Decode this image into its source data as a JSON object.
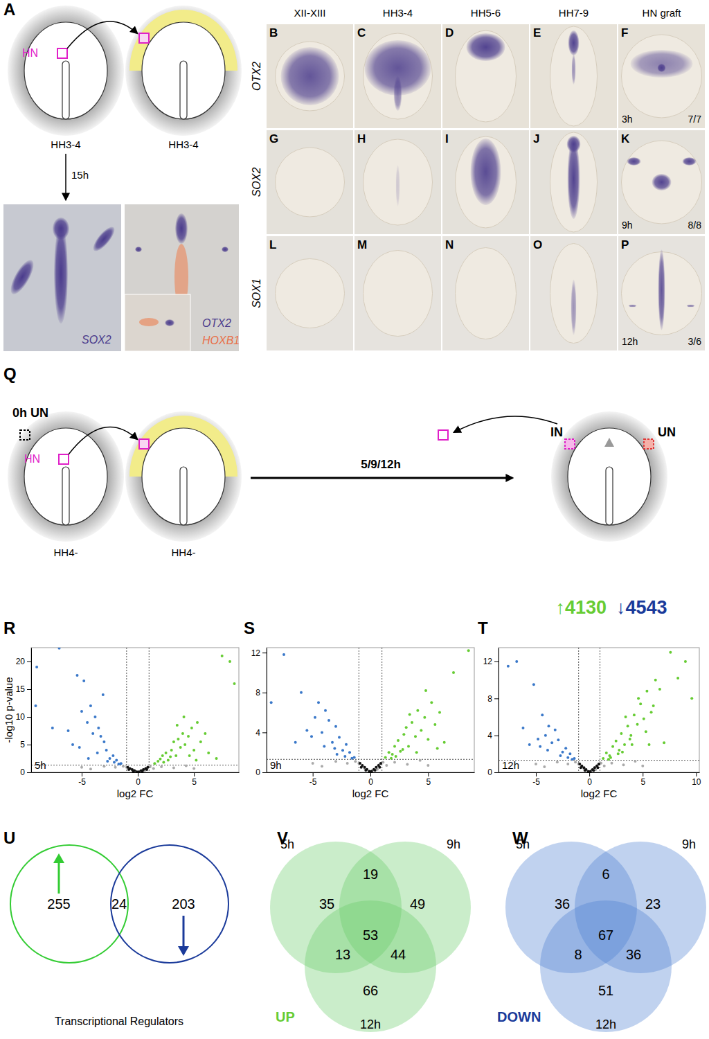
{
  "panel_A": {
    "label": "A",
    "node": "HN",
    "stages": [
      "HH3-4",
      "HH3-4"
    ],
    "duration": "15h",
    "genes": [
      "SOX2",
      "OTX2",
      "HOXB1"
    ]
  },
  "in_situ": {
    "columns": [
      "XII-XIII",
      "HH3-4",
      "HH5-6",
      "HH7-9",
      "HN graft"
    ],
    "genes": [
      "OTX2",
      "SOX2",
      "SOX1"
    ],
    "panels": [
      [
        "B",
        "C",
        "D",
        "E",
        "F"
      ],
      [
        "G",
        "H",
        "I",
        "J",
        "K"
      ],
      [
        "L",
        "M",
        "N",
        "O",
        "P"
      ]
    ],
    "graft_times": [
      "3h",
      "9h",
      "12h"
    ],
    "graft_ratios": [
      "7/7",
      "8/8",
      "3/6"
    ]
  },
  "panel_Q": {
    "label": "Q",
    "start": "0h UN",
    "node": "HN",
    "stages": [
      "HH4-",
      "HH4-"
    ],
    "duration": "5/9/12h",
    "induced": "IN",
    "uninduced": "UN",
    "up": "↑4130",
    "down": "↓4543"
  },
  "chart_data": [
    {
      "type": "scatter",
      "panel": "R",
      "annotation": "5h",
      "x_label": "log2 FC",
      "y_label": "-log10 p-value",
      "marker": "circle",
      "xlim": [
        -9.5,
        9
      ],
      "ylim": [
        0,
        22.5
      ],
      "xticks": [
        -5,
        0,
        5
      ],
      "yticks": [
        0,
        5,
        10,
        15,
        20
      ],
      "cutoffs": {
        "x": [
          -1,
          1
        ],
        "y": 1.3
      },
      "series": [
        {
          "color": "#aaaaaa",
          "x": [
            -1.3,
            -1.0,
            -0.7,
            -0.4,
            -0.1,
            0.2,
            0.5,
            0.8,
            1.1,
            1.4,
            -2.0,
            -3.0,
            -4.2,
            2.1,
            3.2,
            4.3,
            -0.5,
            0.6,
            0.0,
            -5.0,
            5.0
          ],
          "values": [
            1.1,
            0.9,
            0.6,
            0.3,
            0.08,
            0.2,
            0.5,
            0.8,
            1.0,
            0.7,
            0.9,
            1.1,
            0.6,
            1.0,
            0.8,
            1.2,
            0.4,
            0.3,
            0.05,
            0.9,
            0.7
          ]
        },
        {
          "color": "#111111",
          "x": [
            -0.9,
            -0.7,
            -0.5,
            -0.3,
            -0.1,
            0.1,
            0.3,
            0.5,
            0.7,
            0.9,
            -0.8,
            -0.4,
            0.4,
            0.8
          ],
          "values": [
            0.9,
            0.7,
            0.5,
            0.3,
            0.1,
            0.1,
            0.3,
            0.5,
            0.7,
            0.9,
            0.5,
            0.2,
            0.2,
            0.5
          ]
        },
        {
          "color": "#3a78c9",
          "x": [
            -1.5,
            -1.9,
            -2.2,
            -2.5,
            -2.8,
            -3.0,
            -3.3,
            -3.5,
            -3.8,
            -4.0,
            -4.2,
            -4.5,
            -4.8,
            -5.0,
            -5.4,
            -5.8,
            -6.2,
            -7.0,
            -7.6,
            -9.0,
            -9.1,
            -2.1,
            -2.7,
            -3.6,
            -4.4,
            -3.1,
            -1.7,
            -5.2
          ],
          "values": [
            1.6,
            2.2,
            3.0,
            2.5,
            4.0,
            5.5,
            6.5,
            8.0,
            10.0,
            7.0,
            12.0,
            9.0,
            16.5,
            11.0,
            17.5,
            5.0,
            7.5,
            22.4,
            8.0,
            19.0,
            12.0,
            1.8,
            2.0,
            3.5,
            2.5,
            14.0,
            1.5,
            4.5
          ]
        },
        {
          "color": "#66cc33",
          "x": [
            1.5,
            1.8,
            2.0,
            2.2,
            2.5,
            2.7,
            3.0,
            3.2,
            3.4,
            3.6,
            3.8,
            4.0,
            4.2,
            4.5,
            4.8,
            5.0,
            5.3,
            5.6,
            6.0,
            6.3,
            7.0,
            7.5,
            8.2,
            8.6,
            2.3,
            2.9,
            3.5,
            4.1,
            4.6,
            5.2
          ],
          "values": [
            1.6,
            2.0,
            2.4,
            3.0,
            3.5,
            2.2,
            4.0,
            5.5,
            3.0,
            6.0,
            4.5,
            7.0,
            5.0,
            6.5,
            8.0,
            4.0,
            9.0,
            5.5,
            7.0,
            3.5,
            2.5,
            21.0,
            20.0,
            16.0,
            1.8,
            2.8,
            8.5,
            10.0,
            3.0,
            2.2
          ]
        }
      ]
    },
    {
      "type": "scatter",
      "panel": "S",
      "annotation": "9h",
      "x_label": "log2 FC",
      "marker": "circle",
      "xlim": [
        -9,
        9
      ],
      "ylim": [
        0,
        12.5
      ],
      "xticks": [
        -5,
        0,
        5
      ],
      "yticks": [
        0,
        4,
        8,
        12
      ],
      "cutoffs": {
        "x": [
          -1,
          1
        ],
        "y": 1.3
      },
      "series": [
        {
          "color": "#aaaaaa",
          "x": [
            -1.3,
            -1.0,
            -0.7,
            -0.4,
            -0.1,
            0.2,
            0.5,
            0.8,
            1.1,
            1.4,
            -2.0,
            -3.0,
            -4.2,
            2.1,
            3.2,
            4.3,
            -0.5,
            0.6,
            0.0,
            -5.0,
            5.0
          ],
          "values": [
            1.1,
            0.9,
            0.6,
            0.3,
            0.08,
            0.2,
            0.5,
            0.8,
            1.0,
            0.7,
            0.9,
            1.1,
            0.6,
            1.0,
            0.8,
            1.2,
            0.4,
            0.3,
            0.05,
            0.9,
            0.7
          ]
        },
        {
          "color": "#111111",
          "x": [
            -0.9,
            -0.7,
            -0.5,
            -0.3,
            -0.1,
            0.1,
            0.3,
            0.5,
            0.7,
            0.9,
            -0.8,
            -0.4,
            0.4,
            0.8
          ],
          "values": [
            0.9,
            0.7,
            0.5,
            0.3,
            0.1,
            0.1,
            0.3,
            0.5,
            0.7,
            0.9,
            0.5,
            0.2,
            0.2,
            0.5
          ]
        },
        {
          "color": "#3a78c9",
          "x": [
            -1.4,
            -1.8,
            -2.1,
            -2.4,
            -2.7,
            -3.0,
            -3.3,
            -3.6,
            -3.9,
            -4.2,
            -4.5,
            -4.8,
            -5.1,
            -5.5,
            -6.0,
            -6.5,
            -7.5,
            -8.6,
            -2.2,
            -3.1,
            -4.0,
            -1.6,
            -2.9
          ],
          "values": [
            1.5,
            2.0,
            2.8,
            2.2,
            3.5,
            4.6,
            3.0,
            5.2,
            6.2,
            4.0,
            7.0,
            5.5,
            3.6,
            4.2,
            8.0,
            3.0,
            11.8,
            7.0,
            1.6,
            2.4,
            2.6,
            1.4,
            1.8
          ]
        },
        {
          "color": "#66cc33",
          "x": [
            1.3,
            1.6,
            1.9,
            2.1,
            2.4,
            2.6,
            2.9,
            3.1,
            3.3,
            3.6,
            3.9,
            4.1,
            4.4,
            4.7,
            5.0,
            5.3,
            5.6,
            6.0,
            6.4,
            7.2,
            8.5,
            2.2,
            2.8,
            3.4,
            4.0,
            4.8,
            5.8,
            1.8
          ],
          "values": [
            1.5,
            2.0,
            1.8,
            2.6,
            3.2,
            2.1,
            3.8,
            4.5,
            2.6,
            5.0,
            3.6,
            6.2,
            4.2,
            5.5,
            3.3,
            7.0,
            4.8,
            6.0,
            3.0,
            10.0,
            12.2,
            1.6,
            2.3,
            5.8,
            2.0,
            8.2,
            2.4,
            1.4
          ]
        }
      ]
    },
    {
      "type": "scatter",
      "panel": "T",
      "annotation": "12h",
      "x_label": "log2 FC",
      "marker": "circle",
      "xlim": [
        -8.5,
        10.3
      ],
      "ylim": [
        0,
        13.5
      ],
      "xticks": [
        -5,
        0,
        5,
        10
      ],
      "yticks": [
        0,
        4,
        8,
        12
      ],
      "cutoffs": {
        "x": [
          -1,
          1
        ],
        "y": 1.3
      },
      "series": [
        {
          "color": "#aaaaaa",
          "x": [
            -1.3,
            -1.0,
            -0.7,
            -0.4,
            -0.1,
            0.2,
            0.5,
            0.8,
            1.1,
            1.4,
            -2.0,
            -3.0,
            -4.2,
            2.1,
            3.2,
            4.3,
            -0.5,
            0.6,
            0.0,
            -5.0,
            5.0
          ],
          "values": [
            1.1,
            0.9,
            0.6,
            0.3,
            0.08,
            0.2,
            0.5,
            0.8,
            1.0,
            0.7,
            0.9,
            1.1,
            0.6,
            1.0,
            0.8,
            1.2,
            0.4,
            0.3,
            0.05,
            0.9,
            0.7
          ]
        },
        {
          "color": "#111111",
          "x": [
            -0.9,
            -0.7,
            -0.5,
            -0.3,
            -0.1,
            0.1,
            0.3,
            0.5,
            0.7,
            0.9,
            -0.8,
            -0.4,
            0.4,
            0.8
          ],
          "values": [
            0.9,
            0.7,
            0.5,
            0.3,
            0.1,
            0.1,
            0.3,
            0.5,
            0.7,
            0.9,
            0.5,
            0.2,
            0.2,
            0.5
          ]
        },
        {
          "color": "#3a78c9",
          "x": [
            -1.4,
            -1.8,
            -2.2,
            -2.5,
            -2.9,
            -3.2,
            -3.5,
            -3.8,
            -4.1,
            -4.4,
            -4.8,
            -5.2,
            -5.6,
            -6.2,
            -6.8,
            -7.6,
            -2.0,
            -2.7,
            -3.9,
            -4.6,
            -1.6
          ],
          "values": [
            1.5,
            2.0,
            2.6,
            2.2,
            3.5,
            4.6,
            3.2,
            5.0,
            4.0,
            6.2,
            3.6,
            9.5,
            3.0,
            4.8,
            12.0,
            11.5,
            1.6,
            1.8,
            2.4,
            2.8,
            1.4
          ]
        },
        {
          "color": "#66cc33",
          "x": [
            1.3,
            1.6,
            1.9,
            2.2,
            2.5,
            2.8,
            3.0,
            3.3,
            3.6,
            3.9,
            4.2,
            4.5,
            4.8,
            5.1,
            5.4,
            5.8,
            6.2,
            6.6,
            7.0,
            7.6,
            8.3,
            9.0,
            9.6,
            2.0,
            2.7,
            3.4,
            4.0,
            4.6,
            5.3,
            6.0,
            1.8,
            3.1,
            3.8,
            5.6
          ],
          "values": [
            1.5,
            2.1,
            1.8,
            2.8,
            3.4,
            2.4,
            4.2,
            3.0,
            5.0,
            4.0,
            6.2,
            5.2,
            7.4,
            5.8,
            8.8,
            6.5,
            10.0,
            9.0,
            3.2,
            13.0,
            10.2,
            12.0,
            8.0,
            1.6,
            2.0,
            6.0,
            3.0,
            8.0,
            4.4,
            7.2,
            1.4,
            2.2,
            3.6,
            3.0
          ]
        }
      ]
    }
  ],
  "venn_U": {
    "label": "U",
    "title": "Transcriptional Regulators",
    "counts": [
      255,
      24,
      203
    ],
    "colors": [
      "#33cc33",
      "#1a3a9a"
    ]
  },
  "venn_V": {
    "label": "V",
    "title": "UP",
    "sets": [
      "5h",
      "9h",
      "12h"
    ],
    "color": "#66cc66",
    "regions": [
      {
        "sets": [
          0
        ],
        "count": 35
      },
      {
        "sets": [
          0,
          1
        ],
        "count": 19
      },
      {
        "sets": [
          1
        ],
        "count": 49
      },
      {
        "sets": [
          0,
          1,
          2
        ],
        "count": 53
      },
      {
        "sets": [
          0,
          2
        ],
        "count": 13
      },
      {
        "sets": [
          1,
          2
        ],
        "count": 44
      },
      {
        "sets": [
          2
        ],
        "count": 66
      }
    ]
  },
  "venn_W": {
    "label": "W",
    "title": "DOWN",
    "sets": [
      "5h",
      "9h",
      "12h"
    ],
    "color": "#4a7fd0",
    "regions": [
      {
        "sets": [
          0
        ],
        "count": 36
      },
      {
        "sets": [
          0,
          1
        ],
        "count": 6
      },
      {
        "sets": [
          1
        ],
        "count": 23
      },
      {
        "sets": [
          0,
          1,
          2
        ],
        "count": 67
      },
      {
        "sets": [
          0,
          2
        ],
        "count": 8
      },
      {
        "sets": [
          1,
          2
        ],
        "count": 36
      },
      {
        "sets": [
          2
        ],
        "count": 51
      }
    ]
  }
}
